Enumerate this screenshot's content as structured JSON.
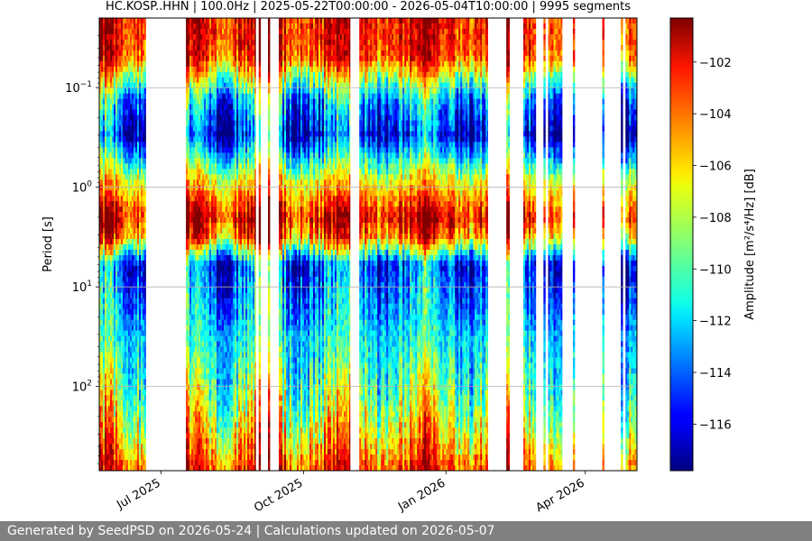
{
  "chart_data": {
    "type": "heatmap",
    "title": "HC.KOSP..HHN | 100.0Hz | 2025-05-22T00:00:00 - 2026-05-04T10:00:00 | 9995 segments",
    "ylabel": "Period [s]",
    "colorbar_label": "Amplitude [m²/s⁴/Hz] [dB]",
    "x_range": [
      "2025-05-22",
      "2026-05-04"
    ],
    "x_ticks": [
      {
        "date": "2025-07-01",
        "label": "Jul 2025"
      },
      {
        "date": "2025-10-01",
        "label": "Oct 2025"
      },
      {
        "date": "2026-01-01",
        "label": "Jan 2026"
      },
      {
        "date": "2026-04-01",
        "label": "Apr 2026"
      }
    ],
    "y_scale": "log",
    "y_inverted": true,
    "y_range_s": [
      0.02,
      700
    ],
    "y_ticks": [
      {
        "value": 0.1,
        "base": "10",
        "exp": "−1"
      },
      {
        "value": 1,
        "base": "10",
        "exp": "0"
      },
      {
        "value": 10,
        "base": "10",
        "exp": "1"
      },
      {
        "value": 100,
        "base": "10",
        "exp": "2"
      }
    ],
    "y_gridlines": true,
    "colormap": "jet",
    "color_range_db": [
      -117.8,
      -100.3
    ],
    "colorbar_ticks": [
      "−102",
      "−104",
      "−106",
      "−108",
      "−110",
      "−112",
      "−114",
      "−116"
    ],
    "colorbar_tick_values": [
      -102,
      -104,
      -106,
      -108,
      -110,
      -112,
      -114,
      -116
    ],
    "data_coverage": [
      [
        "2025-05-22",
        "2025-06-21"
      ],
      [
        "2025-07-17",
        "2025-08-31"
      ],
      [
        "2025-09-02",
        "2025-09-03"
      ],
      [
        "2025-09-08",
        "2025-09-09"
      ],
      [
        "2025-09-15",
        "2025-10-31"
      ],
      [
        "2025-11-06",
        "2026-01-28"
      ],
      [
        "2026-02-09",
        "2026-02-11"
      ],
      [
        "2026-02-20",
        "2026-02-28"
      ],
      [
        "2026-03-05",
        "2026-03-06"
      ],
      [
        "2026-03-08",
        "2026-03-17"
      ],
      [
        "2026-03-24",
        "2026-03-25"
      ],
      [
        "2026-04-12",
        "2026-04-13"
      ],
      [
        "2026-04-24",
        "2026-04-25"
      ],
      [
        "2026-04-27",
        "2026-05-04"
      ]
    ],
    "spectrum_profile": [
      {
        "period_s": 0.02,
        "db": -102
      },
      {
        "period_s": 0.05,
        "db": -103
      },
      {
        "period_s": 0.13,
        "db": -112
      },
      {
        "period_s": 0.3,
        "db": -115
      },
      {
        "period_s": 0.8,
        "db": -107
      },
      {
        "period_s": 2,
        "db": -101.5
      },
      {
        "period_s": 3.2,
        "db": -104
      },
      {
        "period_s": 6,
        "db": -114
      },
      {
        "period_s": 20,
        "db": -112
      },
      {
        "period_s": 60,
        "db": -110
      },
      {
        "period_s": 150,
        "db": -108
      },
      {
        "period_s": 300,
        "db": -106
      },
      {
        "period_s": 700,
        "db": -103
      }
    ]
  },
  "footer": {
    "text": "Generated by SeedPSD on 2026-05-24 | Calculations updated on 2026-05-07"
  }
}
